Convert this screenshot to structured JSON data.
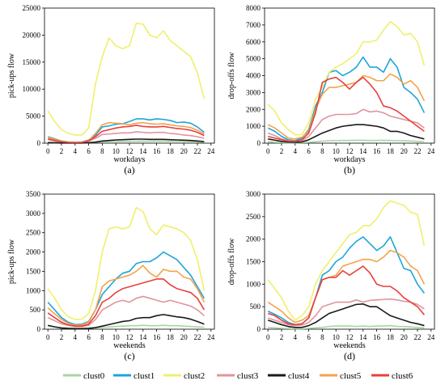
{
  "colors": {
    "clust0": "#a8d5a2",
    "clust1": "#1ea5d8",
    "clust2": "#f0ef6c",
    "clust3": "#e0949c",
    "clust4": "#1a1a1a",
    "clust5": "#f3a24a",
    "clust6": "#e8403c"
  },
  "legend": [
    "clust0",
    "clust1",
    "clust2",
    "clust3",
    "clust4",
    "clust5",
    "clust6"
  ],
  "chart_data": [
    {
      "type": "line",
      "panel_label": "(a)",
      "xlabel": "workdays",
      "ylabel": "pick-ups flow",
      "x": [
        0,
        1,
        2,
        3,
        4,
        5,
        6,
        7,
        8,
        9,
        10,
        11,
        12,
        13,
        14,
        15,
        16,
        17,
        18,
        19,
        20,
        21,
        22,
        23
      ],
      "xticks": [
        0,
        2,
        4,
        6,
        8,
        10,
        12,
        14,
        16,
        18,
        20,
        22,
        24
      ],
      "xlim": [
        -0.5,
        24.5
      ],
      "ylim": [
        0,
        25000
      ],
      "yticks": [
        0,
        5000,
        10000,
        15000,
        20000,
        25000
      ],
      "series": [
        {
          "name": "clust0",
          "values": [
            150,
            80,
            50,
            40,
            40,
            60,
            100,
            180,
            250,
            300,
            320,
            330,
            350,
            360,
            380,
            370,
            360,
            360,
            350,
            340,
            330,
            300,
            250,
            200
          ]
        },
        {
          "name": "clust1",
          "values": [
            1200,
            800,
            400,
            200,
            150,
            200,
            600,
            1500,
            3000,
            3200,
            3500,
            3600,
            4000,
            4500,
            4500,
            4300,
            4500,
            4400,
            4200,
            3800,
            3900,
            3700,
            3000,
            2000
          ]
        },
        {
          "name": "clust2",
          "values": [
            6000,
            4000,
            2500,
            1800,
            1500,
            1500,
            2800,
            11000,
            16000,
            19500,
            18000,
            17500,
            18000,
            22200,
            22000,
            20000,
            19500,
            20800,
            19000,
            18000,
            17000,
            16000,
            13000,
            8200
          ]
        },
        {
          "name": "clust3",
          "values": [
            700,
            400,
            200,
            100,
            80,
            100,
            400,
            900,
            1600,
            1700,
            1800,
            1900,
            1900,
            2100,
            2000,
            1900,
            2000,
            2000,
            1800,
            1700,
            1500,
            1400,
            1200,
            900
          ]
        },
        {
          "name": "clust4",
          "values": [
            100,
            60,
            30,
            20,
            20,
            30,
            80,
            200,
            400,
            500,
            600,
            650,
            700,
            750,
            750,
            700,
            700,
            700,
            650,
            600,
            550,
            500,
            400,
            300
          ]
        },
        {
          "name": "clust5",
          "values": [
            1100,
            700,
            350,
            200,
            150,
            200,
            500,
            1800,
            3400,
            3800,
            3700,
            3600,
            3400,
            3700,
            3800,
            3600,
            3500,
            3600,
            3400,
            3200,
            3100,
            2900,
            2400,
            1700
          ]
        },
        {
          "name": "clust6",
          "values": [
            800,
            500,
            250,
            150,
            100,
            150,
            400,
            1200,
            2200,
            2500,
            2800,
            3000,
            3100,
            3300,
            3100,
            3000,
            3000,
            3100,
            2900,
            2700,
            2600,
            2400,
            2000,
            1400
          ]
        }
      ]
    },
    {
      "type": "line",
      "panel_label": "(b)",
      "xlabel": "workdays",
      "ylabel": "drop-offs flow",
      "x": [
        0,
        1,
        2,
        3,
        4,
        5,
        6,
        7,
        8,
        9,
        10,
        11,
        12,
        13,
        14,
        15,
        16,
        17,
        18,
        19,
        20,
        21,
        22,
        23
      ],
      "xticks": [
        0,
        2,
        4,
        6,
        8,
        10,
        12,
        14,
        16,
        18,
        20,
        22,
        24
      ],
      "xlim": [
        -0.5,
        24.5
      ],
      "ylim": [
        0,
        8000
      ],
      "yticks": [
        0,
        1000,
        2000,
        3000,
        4000,
        5000,
        6000,
        7000,
        8000
      ],
      "series": [
        {
          "name": "clust0",
          "values": [
            80,
            50,
            30,
            20,
            20,
            30,
            50,
            80,
            120,
            150,
            150,
            160,
            160,
            170,
            170,
            160,
            160,
            170,
            160,
            150,
            140,
            130,
            110,
            90
          ]
        },
        {
          "name": "clust1",
          "values": [
            900,
            700,
            400,
            200,
            150,
            300,
            800,
            2200,
            3000,
            4200,
            4300,
            4000,
            4200,
            4500,
            5100,
            4500,
            4500,
            4200,
            5000,
            4500,
            3300,
            3000,
            2600,
            1800
          ]
        },
        {
          "name": "clust2",
          "values": [
            2300,
            1900,
            1200,
            800,
            500,
            500,
            1200,
            2600,
            3300,
            4200,
            4500,
            4700,
            5000,
            5300,
            6000,
            6000,
            6100,
            6700,
            7200,
            6900,
            6400,
            6500,
            6000,
            4600
          ]
        },
        {
          "name": "clust3",
          "values": [
            600,
            450,
            250,
            150,
            120,
            150,
            400,
            900,
            1400,
            1600,
            1700,
            1700,
            1700,
            1750,
            2000,
            1850,
            1900,
            1800,
            1600,
            1500,
            1400,
            1300,
            1200,
            900
          ]
        },
        {
          "name": "clust4",
          "values": [
            250,
            180,
            100,
            60,
            50,
            70,
            200,
            400,
            600,
            750,
            900,
            1000,
            1050,
            1100,
            1100,
            1050,
            1000,
            900,
            700,
            700,
            600,
            450,
            350,
            250
          ]
        },
        {
          "name": "clust5",
          "values": [
            1100,
            900,
            600,
            300,
            250,
            350,
            700,
            2000,
            2900,
            3300,
            3300,
            3400,
            3500,
            3600,
            4000,
            3900,
            3700,
            3700,
            4100,
            3900,
            3500,
            3700,
            3300,
            2500
          ]
        },
        {
          "name": "clust6",
          "values": [
            400,
            300,
            200,
            120,
            100,
            200,
            600,
            1800,
            3600,
            3800,
            3900,
            3600,
            3200,
            3600,
            3900,
            3500,
            3000,
            2200,
            2100,
            1900,
            1600,
            1300,
            1000,
            700
          ]
        }
      ]
    },
    {
      "type": "line",
      "panel_label": "(c)",
      "xlabel": "weekends",
      "ylabel": "pick-ups flow",
      "x": [
        0,
        1,
        2,
        3,
        4,
        5,
        6,
        7,
        8,
        9,
        10,
        11,
        12,
        13,
        14,
        15,
        16,
        17,
        18,
        19,
        20,
        21,
        22,
        23
      ],
      "xticks": [
        0,
        2,
        4,
        6,
        8,
        10,
        12,
        14,
        16,
        18,
        20,
        22,
        24
      ],
      "xlim": [
        -0.5,
        24.5
      ],
      "ylim": [
        0,
        3500
      ],
      "yticks": [
        0,
        500,
        1000,
        1500,
        2000,
        2500,
        3000,
        3500
      ],
      "series": [
        {
          "name": "clust0",
          "values": [
            80,
            60,
            40,
            30,
            20,
            20,
            30,
            40,
            50,
            60,
            70,
            80,
            90,
            90,
            100,
            90,
            90,
            100,
            90,
            90,
            80,
            70,
            60,
            50
          ]
        },
        {
          "name": "clust1",
          "values": [
            700,
            500,
            300,
            180,
            120,
            130,
            200,
            500,
            900,
            1100,
            1300,
            1450,
            1500,
            1700,
            1750,
            1750,
            1850,
            2000,
            1900,
            1800,
            1600,
            1400,
            1100,
            800
          ]
        },
        {
          "name": "clust2",
          "values": [
            1050,
            800,
            500,
            320,
            250,
            260,
            400,
            1000,
            2000,
            2600,
            2650,
            2600,
            2650,
            3150,
            3050,
            2600,
            2450,
            2700,
            2650,
            2600,
            2500,
            2300,
            1800,
            1000
          ]
        },
        {
          "name": "clust3",
          "values": [
            300,
            220,
            140,
            100,
            70,
            70,
            100,
            250,
            500,
            600,
            700,
            750,
            700,
            800,
            850,
            800,
            750,
            700,
            750,
            700,
            650,
            600,
            500,
            350
          ]
        },
        {
          "name": "clust4",
          "values": [
            100,
            60,
            30,
            20,
            15,
            15,
            20,
            40,
            80,
            120,
            160,
            200,
            220,
            280,
            300,
            300,
            350,
            380,
            350,
            320,
            300,
            260,
            200,
            130
          ]
        },
        {
          "name": "clust5",
          "values": [
            550,
            400,
            250,
            150,
            100,
            110,
            180,
            500,
            1100,
            1250,
            1300,
            1350,
            1400,
            1500,
            1650,
            1450,
            1350,
            1550,
            1500,
            1500,
            1350,
            1300,
            1050,
            700
          ]
        },
        {
          "name": "clust6",
          "values": [
            420,
            300,
            180,
            110,
            80,
            80,
            130,
            350,
            700,
            800,
            950,
            1050,
            1100,
            1150,
            1200,
            1250,
            1300,
            1300,
            1150,
            1050,
            1000,
            950,
            800,
            500
          ]
        }
      ]
    },
    {
      "type": "line",
      "panel_label": "(d)",
      "xlabel": "weekends",
      "ylabel": "drop-offs flow",
      "x": [
        0,
        1,
        2,
        3,
        4,
        5,
        6,
        7,
        8,
        9,
        10,
        11,
        12,
        13,
        14,
        15,
        16,
        17,
        18,
        19,
        20,
        21,
        22,
        23
      ],
      "xticks": [
        0,
        2,
        4,
        6,
        8,
        10,
        12,
        14,
        16,
        18,
        20,
        22,
        24
      ],
      "xlim": [
        -0.5,
        24.5
      ],
      "ylim": [
        0,
        3000
      ],
      "yticks": [
        0,
        500,
        1000,
        1500,
        2000,
        2500,
        3000
      ],
      "series": [
        {
          "name": "clust0",
          "values": [
            40,
            30,
            20,
            15,
            10,
            10,
            20,
            30,
            40,
            60,
            70,
            70,
            70,
            60,
            70,
            60,
            70,
            70,
            80,
            60,
            60,
            50,
            40,
            30
          ]
        },
        {
          "name": "clust1",
          "values": [
            400,
            330,
            250,
            150,
            100,
            120,
            250,
            700,
            1200,
            1300,
            1500,
            1600,
            1800,
            1950,
            2050,
            1900,
            1750,
            1850,
            2050,
            1700,
            1350,
            1300,
            1000,
            800
          ]
        },
        {
          "name": "clust2",
          "values": [
            1100,
            900,
            700,
            400,
            200,
            300,
            500,
            1000,
            1300,
            1500,
            1700,
            1900,
            2100,
            2150,
            2300,
            2300,
            2450,
            2700,
            2850,
            2800,
            2750,
            2600,
            2550,
            1850
          ]
        },
        {
          "name": "clust3",
          "values": [
            250,
            200,
            150,
            100,
            80,
            90,
            150,
            300,
            500,
            550,
            600,
            600,
            600,
            650,
            600,
            640,
            650,
            660,
            670,
            650,
            620,
            600,
            550,
            450
          ]
        },
        {
          "name": "clust4",
          "values": [
            200,
            150,
            100,
            60,
            40,
            40,
            80,
            150,
            250,
            350,
            400,
            450,
            500,
            550,
            560,
            500,
            500,
            400,
            300,
            250,
            200,
            150,
            120,
            80
          ]
        },
        {
          "name": "clust5",
          "values": [
            600,
            500,
            400,
            250,
            150,
            200,
            300,
            700,
            1100,
            1150,
            1200,
            1400,
            1450,
            1500,
            1550,
            1550,
            1500,
            1600,
            1750,
            1700,
            1600,
            1400,
            1300,
            1000
          ]
        },
        {
          "name": "clust6",
          "values": [
            350,
            300,
            200,
            120,
            100,
            120,
            250,
            700,
            1100,
            1150,
            1150,
            1300,
            1200,
            1300,
            1400,
            1250,
            1000,
            950,
            950,
            850,
            700,
            600,
            500,
            320
          ]
        }
      ]
    }
  ]
}
